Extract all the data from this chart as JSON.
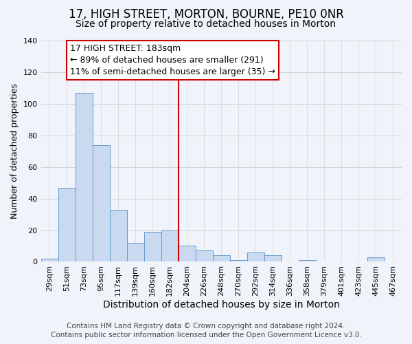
{
  "title": "17, HIGH STREET, MORTON, BOURNE, PE10 0NR",
  "subtitle": "Size of property relative to detached houses in Morton",
  "xlabel": "Distribution of detached houses by size in Morton",
  "ylabel": "Number of detached properties",
  "categories": [
    "29sqm",
    "51sqm",
    "73sqm",
    "95sqm",
    "117sqm",
    "139sqm",
    "160sqm",
    "182sqm",
    "204sqm",
    "226sqm",
    "248sqm",
    "270sqm",
    "292sqm",
    "314sqm",
    "336sqm",
    "358sqm",
    "379sqm",
    "401sqm",
    "423sqm",
    "445sqm",
    "467sqm"
  ],
  "values": [
    2,
    47,
    107,
    74,
    33,
    12,
    19,
    20,
    10,
    7,
    4,
    1,
    6,
    4,
    0,
    1,
    0,
    0,
    0,
    3,
    0
  ],
  "bar_color": "#c9d9f0",
  "bar_edge_color": "#6699cc",
  "ylim": [
    0,
    140
  ],
  "yticks": [
    0,
    20,
    40,
    60,
    80,
    100,
    120,
    140
  ],
  "vline_idx": 7,
  "vline_color": "#cc0000",
  "annotation_title": "17 HIGH STREET: 183sqm",
  "annotation_line1": "← 89% of detached houses are smaller (291)",
  "annotation_line2": "11% of semi-detached houses are larger (35) →",
  "annotation_box_color": "#ffffff",
  "annotation_box_edge": "#cc0000",
  "footer1": "Contains HM Land Registry data © Crown copyright and database right 2024.",
  "footer2": "Contains public sector information licensed under the Open Government Licence v3.0.",
  "background_color": "#f0f4fa",
  "grid_color": "#cccccc",
  "title_fontsize": 12,
  "subtitle_fontsize": 10,
  "xlabel_fontsize": 10,
  "ylabel_fontsize": 9,
  "tick_fontsize": 8,
  "annotation_fontsize": 9,
  "footer_fontsize": 7.5
}
